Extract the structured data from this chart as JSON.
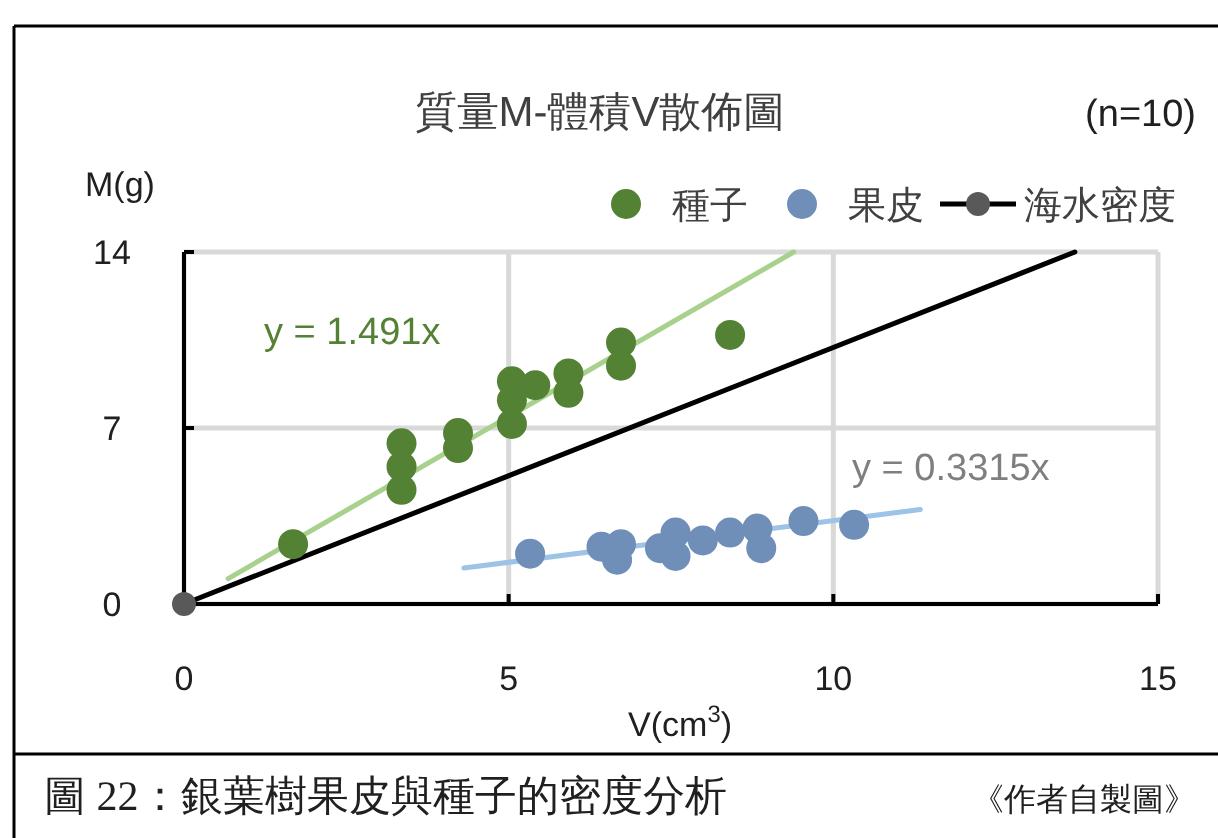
{
  "chart_data": {
    "type": "scatter",
    "title": "質量M-體積V散佈圖",
    "xlabel": "V(cm$^{3}$)",
    "ylabel": "M(g)",
    "xlim": [
      0,
      15
    ],
    "ylim": [
      0,
      14
    ],
    "xticks": [
      0,
      5,
      10,
      15
    ],
    "yticks": [
      0,
      7,
      14
    ],
    "grid": true,
    "legend": "top",
    "marker": "circle",
    "series": [
      {
        "name": "種子",
        "color": "#548235",
        "x": [
          1.68,
          3.35,
          3.35,
          3.35,
          4.22,
          4.22,
          5.05,
          5.05,
          5.05,
          5.41,
          5.92,
          5.92,
          6.73,
          6.73,
          8.41
        ],
        "values": [
          2.38,
          6.39,
          5.46,
          4.54,
          6.8,
          6.2,
          8.86,
          8.1,
          7.16,
          8.7,
          9.17,
          8.4,
          10.4,
          9.48,
          10.7
        ]
      },
      {
        "name": "果皮",
        "color": "#6f8fb8",
        "x": [
          5.33,
          6.43,
          6.67,
          6.73,
          7.33,
          7.57,
          7.57,
          7.99,
          8.41,
          8.83,
          8.89,
          9.54,
          10.32
        ],
        "values": [
          2.0,
          2.28,
          1.76,
          2.38,
          2.22,
          2.84,
          1.91,
          2.53,
          2.84,
          3.0,
          2.22,
          3.3,
          3.15
        ]
      },
      {
        "name": "海水密度",
        "type": "line",
        "color": "#000000",
        "marker": "circle",
        "x": [
          0,
          13.72
        ],
        "values": [
          0,
          14
        ]
      },
      {
        "type": "line",
        "color": "#a9d18e",
        "marker": "none",
        "x": [
          0.68,
          9.39
        ],
        "values": [
          1.01,
          14.0
        ]
      },
      {
        "type": "line",
        "color": "#9dc3e6",
        "marker": "none",
        "x": [
          4.31,
          11.34
        ],
        "values": [
          1.43,
          3.76
        ]
      }
    ],
    "annotations": [
      "y = 1.491x",
      "y = 0.3315x",
      "(n=10)",
      "圖 22：銀葉樹果皮與種子的密度分析",
      "《作者自製圖》"
    ]
  }
}
